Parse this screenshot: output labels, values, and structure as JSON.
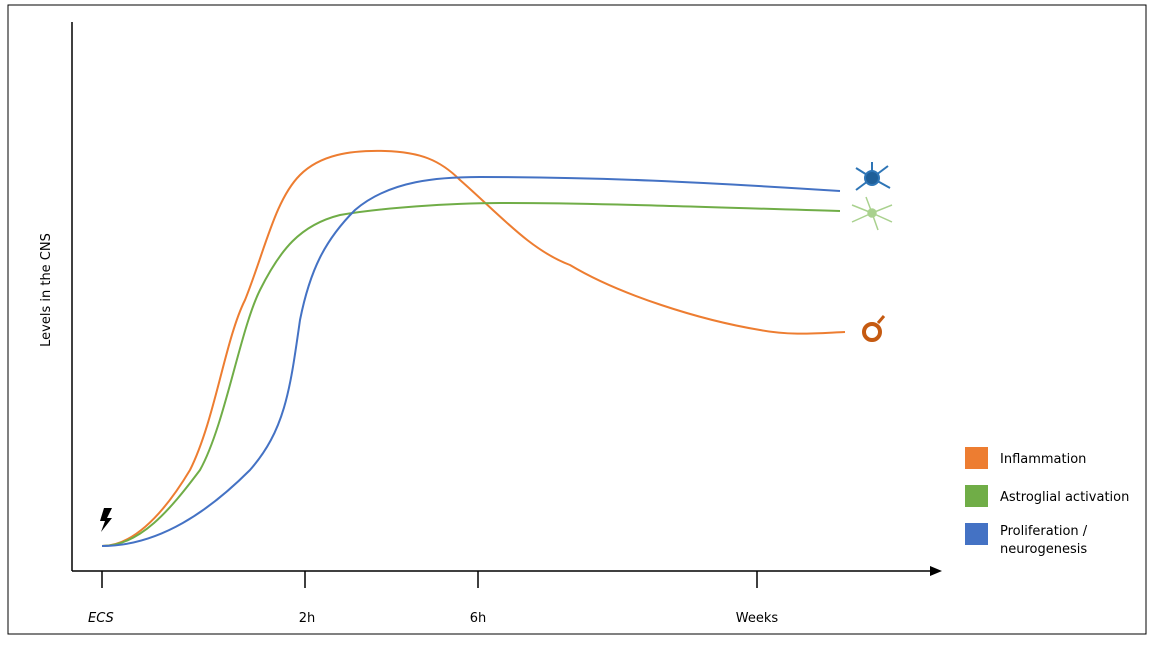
{
  "axis": {
    "y_label": "Levels in the CNS",
    "x_labels": [
      "ECS",
      "2h",
      "6h",
      "Weeks"
    ]
  },
  "legend": [
    {
      "label": "Inflammation",
      "color": "#ed7d31"
    },
    {
      "label": "Astroglial activation",
      "color": "#70ad47"
    },
    {
      "label": "Proliferation / neurogenesis",
      "color": "#4472c4"
    }
  ]
}
